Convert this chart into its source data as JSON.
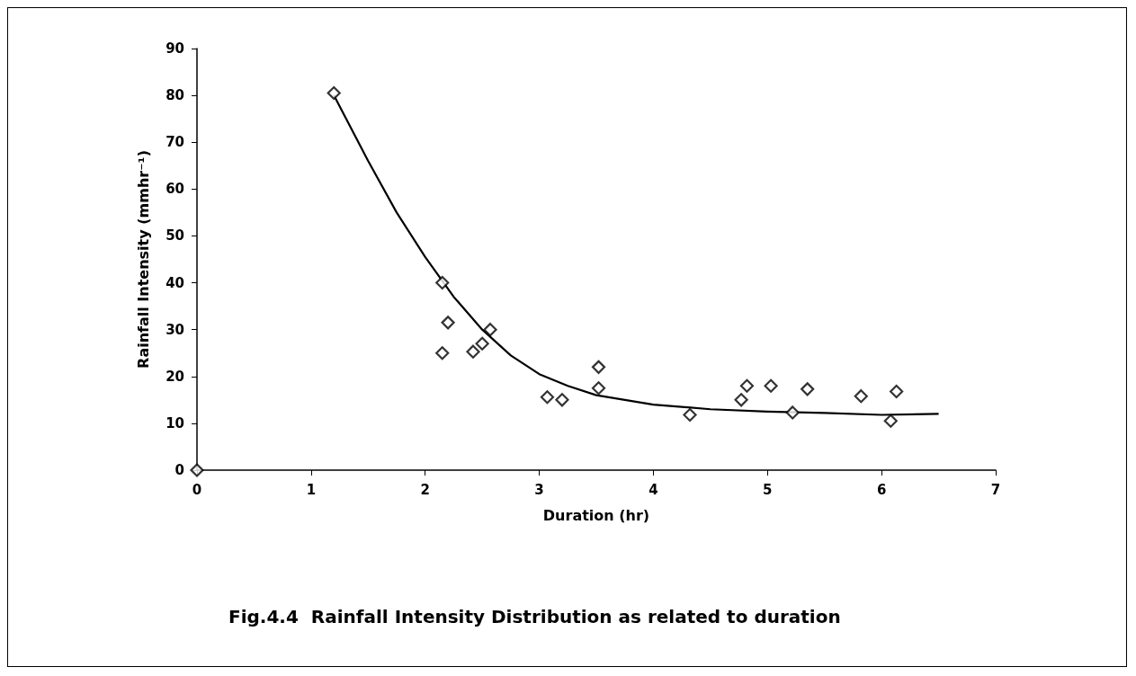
{
  "chart_data": {
    "type": "scatter",
    "title": "Fig.4.4  Rainfall Intensity Distribution as related to duration",
    "xlabel": "Duration (hr)",
    "ylabel": "Rainfall Intensity (mmhr⁻¹)",
    "xlim": [
      0,
      7
    ],
    "xticks": [
      0,
      1,
      2,
      3,
      4,
      5,
      6,
      7
    ],
    "ylim": [
      0,
      90
    ],
    "yticks": [
      0,
      10,
      20,
      30,
      40,
      50,
      60,
      70,
      80,
      90
    ],
    "grid": false,
    "series": [
      {
        "color": "#000000",
        "marker": "diamond",
        "x": [
          0,
          1.2,
          2.15,
          2.2,
          2.15,
          2.42,
          2.5,
          2.57,
          3.07,
          3.2,
          3.52,
          3.52,
          4.32,
          4.77,
          4.82,
          5.03,
          5.22,
          5.35,
          5.82,
          6.08,
          6.13
        ],
        "values": [
          0,
          80.5,
          40,
          31.5,
          25,
          25.3,
          27,
          30,
          15.6,
          15,
          22,
          17.5,
          11.8,
          15,
          18,
          18,
          12.3,
          17.3,
          15.8,
          10.5,
          16.8
        ]
      },
      {
        "type": "line",
        "color": "#000000",
        "marker": "none",
        "line_style": "solid",
        "x": [
          1.2,
          1.5,
          1.75,
          2.0,
          2.25,
          2.5,
          2.75,
          3.0,
          3.25,
          3.5,
          4.0,
          4.5,
          5.0,
          5.5,
          6.0,
          6.5
        ],
        "values": [
          80,
          66,
          55,
          45.5,
          37,
          30,
          24.5,
          20.5,
          18,
          16,
          14,
          13,
          12.5,
          12.2,
          11.8,
          12
        ]
      }
    ]
  }
}
